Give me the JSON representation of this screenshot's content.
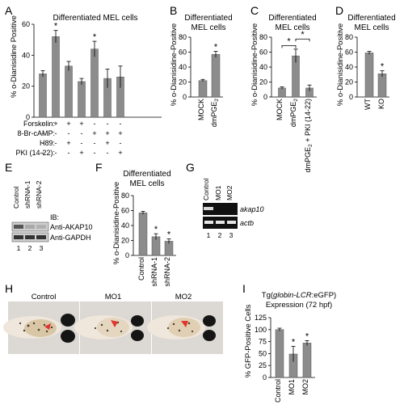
{
  "panel_letters": {
    "A": "A",
    "B": "B",
    "C": "C",
    "D": "D",
    "E": "E",
    "F": "F",
    "G": "G",
    "H": "H",
    "I": "I"
  },
  "text": {
    "A_title": "Differentiated MEL cells",
    "A_ylabel": "% o-Dianisidine Positive",
    "A_treatments": [
      "Forskolin:",
      "8-Br-cAMP:",
      "H89:",
      "PKI (14-22):"
    ],
    "A_signs": [
      [
        "-",
        "+",
        "+",
        "+",
        "-",
        "-",
        "-"
      ],
      [
        "-",
        "-",
        "-",
        "-",
        "+",
        "+",
        "+"
      ],
      [
        "-",
        "-",
        "+",
        "-",
        "-",
        "+",
        "-"
      ],
      [
        "-",
        "-",
        "-",
        "+",
        "-",
        "-",
        "+"
      ]
    ],
    "B_title": [
      "Differentiated",
      "MEL cells"
    ],
    "B_ylabel": "% o-Dianisidine-Positive",
    "C_title": [
      "Differentiated",
      "MEL cells"
    ],
    "C_ylabel": "% o-Dianisidine-Positive",
    "D_title": [
      "Differentiated",
      "MEL cells"
    ],
    "D_ylabel": "% o-Dianisidine-Positive",
    "E_lanes": [
      "Control",
      "shRNA-1",
      "shRNA-2"
    ],
    "E_ib": "IB:",
    "E_blots": [
      "Anti-AKAP10",
      "Anti-GAPDH"
    ],
    "E_numbers": [
      "1",
      "2",
      "3"
    ],
    "F_title": [
      "Differentiated",
      "MEL cells"
    ],
    "F_ylabel": "% o-Dianisidine-Positive",
    "G_lanes": [
      "Control",
      "MO1",
      "MO2"
    ],
    "G_genes": [
      "akap10",
      "actb"
    ],
    "G_numbers": [
      "1",
      "2",
      "3"
    ],
    "H_labels": [
      "Control",
      "MO1",
      "MO2"
    ],
    "I_title": [
      "Tg(globin-LCR:eGFP)",
      "Expression (72 hpf)"
    ],
    "I_ylabel": "% GFP-Positive Cells",
    "asterisk": "*"
  },
  "colors": {
    "bar": "#8c8c8c",
    "axis": "#000000",
    "gel": "#101010",
    "arrow": "#e0342c"
  },
  "chart_data": [
    {
      "panel": "A",
      "type": "bar",
      "title": "Differentiated MEL cells",
      "xlabel": "",
      "ylabel": "% o-Dianisidine Positive",
      "ylim": [
        0,
        60
      ],
      "yticks": [
        "0",
        "20",
        "40",
        "60"
      ],
      "values": [
        28,
        52,
        33,
        23,
        44,
        25,
        26
      ],
      "errors": [
        2,
        4,
        3,
        2,
        5,
        6,
        7
      ],
      "significant": [
        false,
        true,
        false,
        false,
        true,
        false,
        false
      ]
    },
    {
      "panel": "B",
      "type": "bar",
      "title": "Differentiated MEL cells",
      "xlabel": "",
      "ylabel": "% o-Dianisidine-Positive",
      "ylim": [
        0,
        80
      ],
      "yticks": [
        "0",
        "20",
        "40",
        "60",
        "80"
      ],
      "categories": [
        "MOCK",
        "dmPGE2"
      ],
      "values": [
        22,
        57
      ],
      "errors": [
        1.5,
        4
      ],
      "significant": [
        false,
        true
      ]
    },
    {
      "panel": "C",
      "type": "bar",
      "title": "Differentiated MEL cells",
      "xlabel": "",
      "ylabel": "% o-Dianisidine-Positive",
      "ylim": [
        0,
        80
      ],
      "yticks": [
        "0",
        "20",
        "40",
        "60",
        "80"
      ],
      "categories": [
        "MOCK",
        "dmPGE2",
        "dmPGE2 + PKI (14-22)"
      ],
      "values": [
        12,
        55,
        12
      ],
      "errors": [
        1.5,
        9,
        4
      ],
      "significant": [
        false,
        false,
        false
      ],
      "brackets": [
        [
          0,
          1
        ],
        [
          1,
          2
        ]
      ]
    },
    {
      "panel": "D",
      "type": "bar",
      "title": "Differentiated MEL cells",
      "xlabel": "",
      "ylabel": "% o-Dianisidine-Positive",
      "ylim": [
        0,
        80
      ],
      "yticks": [
        "0",
        "20",
        "40",
        "60",
        "80"
      ],
      "categories": [
        "WT",
        "KO"
      ],
      "values": [
        59,
        31
      ],
      "errors": [
        2,
        4
      ],
      "significant": [
        false,
        true
      ]
    },
    {
      "panel": "F",
      "type": "bar",
      "title": "Differentiated MEL cells",
      "xlabel": "",
      "ylabel": "% o-Dianisidine-Positive",
      "ylim": [
        0,
        80
      ],
      "yticks": [
        "0",
        "20",
        "40",
        "60",
        "80"
      ],
      "categories": [
        "Control",
        "shRNA-1",
        "shRNA-2"
      ],
      "values": [
        57,
        25,
        19
      ],
      "errors": [
        2,
        4,
        3
      ],
      "significant": [
        false,
        true,
        true
      ]
    },
    {
      "panel": "I",
      "type": "bar",
      "title": "Tg(globin-LCR:eGFP) Expression (72 hpf)",
      "xlabel": "",
      "ylabel": "% GFP-Positive Cells",
      "ylim": [
        0,
        125
      ],
      "yticks": [
        "0",
        "25",
        "50",
        "75",
        "100",
        "125"
      ],
      "categories": [
        "Control",
        "MO1",
        "MO2"
      ],
      "values": [
        100,
        49,
        72
      ],
      "errors": [
        3,
        16,
        5
      ],
      "significant": [
        false,
        true,
        true
      ]
    }
  ]
}
